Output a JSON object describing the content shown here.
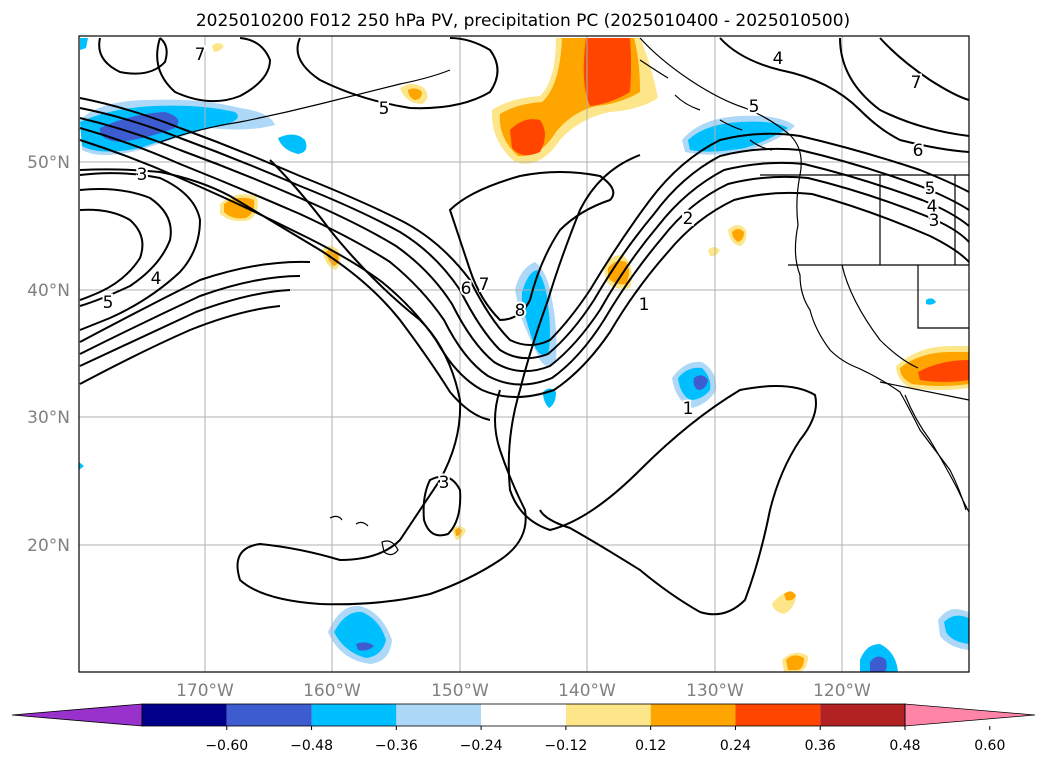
{
  "title": "2025010200 F012 250 hPa PV, precipitation PC (2025010400 - 2025010500)",
  "lat_labels": [
    "50°N",
    "40°N",
    "30°N",
    "20°N"
  ],
  "lon_labels": [
    "170°W",
    "160°W",
    "150°W",
    "140°W",
    "130°W",
    "120°W"
  ],
  "colorbar": {
    "ticks": [
      "−0.60",
      "−0.48",
      "−0.36",
      "−0.24",
      "−0.12",
      "0.12",
      "0.24",
      "0.36",
      "0.48",
      "0.60"
    ],
    "colors": [
      "#9932cc",
      "#00008b",
      "#3c5ccf",
      "#00bfff",
      "#add8f7",
      "#ffffff",
      "#fde68a",
      "#ffa500",
      "#ff4500",
      "#b22222",
      "#ff85a8"
    ]
  },
  "contour_labels": [
    "7",
    "5",
    "3",
    "5",
    "4",
    "6",
    "7",
    "8",
    "2",
    "1",
    "1",
    "3",
    "4",
    "5",
    "7",
    "6",
    "5",
    "4",
    "3"
  ],
  "colors": {
    "neg_light": "#add8f7",
    "neg_mid": "#00bfff",
    "neg_strong": "#3c5ccf",
    "pos_light": "#fde68a",
    "pos_mid": "#ffa500",
    "pos_strong": "#ff4500"
  }
}
